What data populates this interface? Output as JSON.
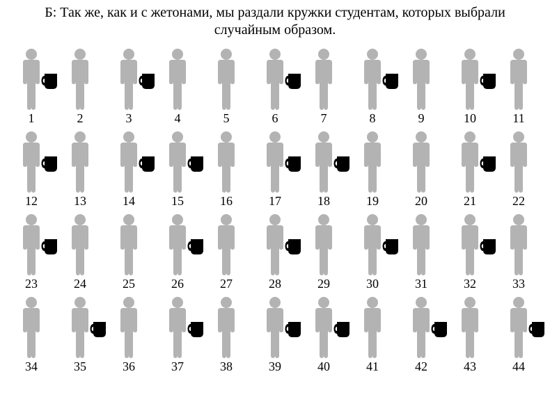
{
  "title": "Б: Так же, как и с жетонами, мы раздали кружки студентам, которых выбрали случайным образом.",
  "diagram": {
    "type": "infographic",
    "columns": 11,
    "rows": 4,
    "person_color": "#b3b3b3",
    "mug_color": "#000000",
    "label_color": "#000000",
    "label_fontsize": 18,
    "background_color": "#ffffff",
    "people": [
      {
        "n": 1,
        "mug": true
      },
      {
        "n": 2,
        "mug": false
      },
      {
        "n": 3,
        "mug": true
      },
      {
        "n": 4,
        "mug": false
      },
      {
        "n": 5,
        "mug": false
      },
      {
        "n": 6,
        "mug": true
      },
      {
        "n": 7,
        "mug": false
      },
      {
        "n": 8,
        "mug": true
      },
      {
        "n": 9,
        "mug": false
      },
      {
        "n": 10,
        "mug": true
      },
      {
        "n": 11,
        "mug": false
      },
      {
        "n": 12,
        "mug": true
      },
      {
        "n": 13,
        "mug": false
      },
      {
        "n": 14,
        "mug": true
      },
      {
        "n": 15,
        "mug": true
      },
      {
        "n": 16,
        "mug": false
      },
      {
        "n": 17,
        "mug": true
      },
      {
        "n": 18,
        "mug": true
      },
      {
        "n": 19,
        "mug": false
      },
      {
        "n": 20,
        "mug": false
      },
      {
        "n": 21,
        "mug": true
      },
      {
        "n": 22,
        "mug": false
      },
      {
        "n": 23,
        "mug": true
      },
      {
        "n": 24,
        "mug": false
      },
      {
        "n": 25,
        "mug": false
      },
      {
        "n": 26,
        "mug": true
      },
      {
        "n": 27,
        "mug": false
      },
      {
        "n": 28,
        "mug": true
      },
      {
        "n": 29,
        "mug": false
      },
      {
        "n": 30,
        "mug": true
      },
      {
        "n": 31,
        "mug": false
      },
      {
        "n": 32,
        "mug": true
      },
      {
        "n": 33,
        "mug": false
      },
      {
        "n": 34,
        "mug": false
      },
      {
        "n": 35,
        "mug": true
      },
      {
        "n": 36,
        "mug": false
      },
      {
        "n": 37,
        "mug": true
      },
      {
        "n": 38,
        "mug": false
      },
      {
        "n": 39,
        "mug": true
      },
      {
        "n": 40,
        "mug": true
      },
      {
        "n": 41,
        "mug": false
      },
      {
        "n": 42,
        "mug": true
      },
      {
        "n": 43,
        "mug": false
      },
      {
        "n": 44,
        "mug": true
      }
    ]
  }
}
